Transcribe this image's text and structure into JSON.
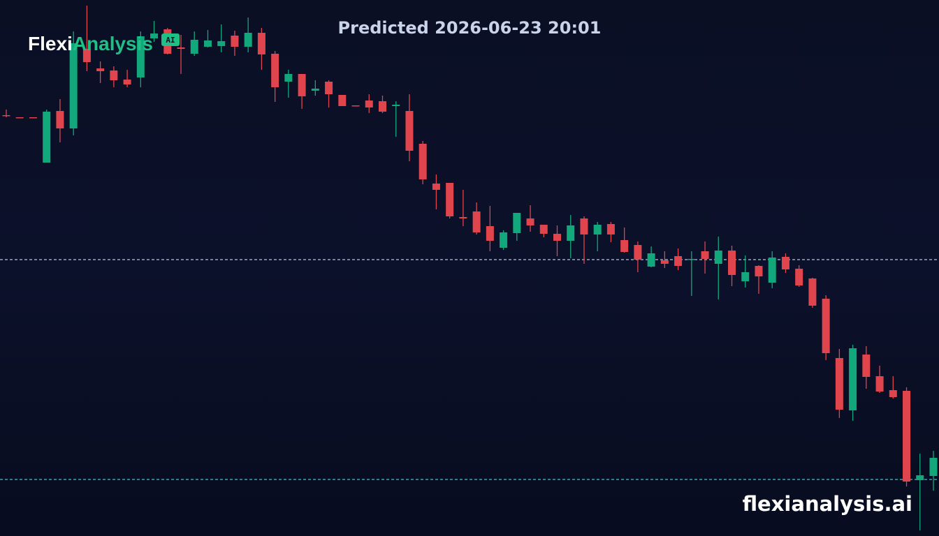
{
  "chart_data": {
    "type": "candlestick",
    "title": "Predicted 2026-06-23 20:01",
    "categories": [
      null,
      null,
      null,
      null,
      null,
      null,
      null,
      null,
      null,
      null,
      null,
      null,
      null,
      null,
      null,
      null,
      null,
      null,
      null,
      null,
      null,
      null,
      null,
      null,
      null,
      null,
      null,
      null,
      null,
      null,
      null,
      null,
      null,
      null,
      null,
      null,
      null,
      null,
      null,
      null,
      null,
      null,
      null,
      null,
      null,
      null,
      null,
      null,
      null,
      null,
      null,
      null,
      null,
      null,
      null,
      null,
      null,
      null,
      null,
      null,
      null,
      null,
      null,
      null,
      null,
      null,
      null,
      null,
      null,
      null
    ],
    "open": [
      603,
      600,
      600,
      535,
      609,
      584,
      698,
      670,
      667,
      654,
      657,
      713,
      726,
      700,
      691,
      701,
      702,
      717,
      701,
      721,
      691,
      651,
      662,
      638,
      651,
      632,
      617,
      624,
      623,
      616,
      609,
      562,
      505,
      506,
      457,
      465,
      444,
      413,
      434,
      455,
      446,
      433,
      423,
      455,
      432,
      447,
      424,
      417,
      386,
      395,
      401,
      396,
      408,
      390,
      409,
      365,
      387,
      363,
      400,
      383,
      369,
      340,
      255,
      180,
      260,
      229,
      209,
      208,
      80,
      86
    ],
    "high": [
      611,
      600,
      600,
      611,
      626,
      723,
      760,
      680,
      673,
      668,
      723,
      738,
      728,
      718,
      723,
      725,
      733,
      724,
      743,
      728,
      695,
      668,
      662,
      653,
      653,
      632,
      617,
      633,
      631,
      623,
      633,
      566,
      518,
      506,
      496,
      478,
      473,
      438,
      463,
      474,
      446,
      445,
      460,
      458,
      450,
      450,
      442,
      422,
      415,
      408,
      412,
      408,
      422,
      429,
      416,
      402,
      388,
      408,
      405,
      388,
      370,
      345,
      268,
      274,
      272,
      244,
      229,
      213,
      118,
      122
    ],
    "low": [
      600,
      599,
      599,
      535,
      564,
      574,
      666,
      649,
      643,
      643,
      643,
      708,
      690,
      662,
      688,
      700,
      693,
      688,
      693,
      668,
      622,
      628,
      612,
      631,
      614,
      616,
      616,
      606,
      606,
      572,
      537,
      504,
      468,
      455,
      444,
      432,
      408,
      410,
      423,
      436,
      428,
      401,
      398,
      390,
      408,
      421,
      406,
      378,
      385,
      384,
      381,
      344,
      376,
      339,
      358,
      356,
      347,
      355,
      377,
      357,
      327,
      252,
      169,
      165,
      211,
      205,
      197,
      71,
      8,
      65
    ],
    "close": [
      602,
      599,
      599,
      608,
      584,
      706,
      679,
      666,
      653,
      647,
      716,
      720,
      691,
      698,
      711,
      710,
      709,
      701,
      721,
      690,
      643,
      662,
      630,
      641,
      633,
      616,
      616,
      614,
      608,
      618,
      552,
      511,
      496,
      458,
      455,
      435,
      423,
      435,
      463,
      445,
      433,
      423,
      445,
      432,
      446,
      432,
      407,
      396,
      405,
      390,
      387,
      397,
      397,
      409,
      374,
      378,
      372,
      399,
      382,
      359,
      330,
      262,
      181,
      269,
      228,
      207,
      199,
      78,
      87,
      112
    ],
    "up_color": "#12a87c",
    "down_color": "#e0444c",
    "ylim": [
      0,
      768
    ],
    "reference_lines": [
      {
        "value": 396,
        "color": "#b9c3d8"
      },
      {
        "value": 81,
        "color": "#3fc3d2"
      }
    ]
  },
  "logo": {
    "part1": "Flexi",
    "part2": "Analysis",
    "badge": "AI"
  },
  "watermark": "flexianalysis.ai"
}
